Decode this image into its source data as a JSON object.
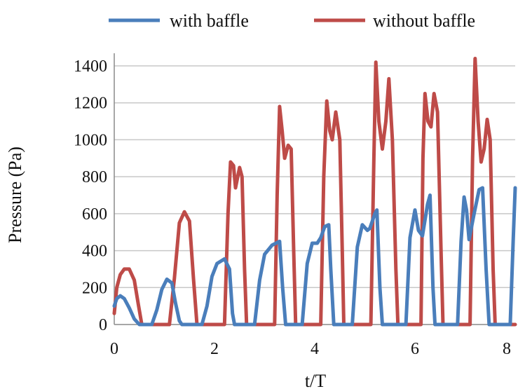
{
  "chart_data": {
    "type": "line",
    "title": "",
    "xlabel": "t/T",
    "ylabel": "Pressure (Pa)",
    "xlim": [
      0,
      8
    ],
    "ylim": [
      0,
      1400
    ],
    "xticks": [
      0,
      2,
      4,
      6,
      8
    ],
    "yticks": [
      0,
      200,
      400,
      600,
      800,
      1000,
      1200,
      1400
    ],
    "grid": "horizontal",
    "legend_position": "top",
    "series": [
      {
        "name": "with baffle",
        "color": "#4a7ebb",
        "points": [
          [
            0.0,
            100
          ],
          [
            0.05,
            140
          ],
          [
            0.12,
            155
          ],
          [
            0.2,
            140
          ],
          [
            0.3,
            90
          ],
          [
            0.4,
            30
          ],
          [
            0.5,
            0
          ],
          [
            0.75,
            0
          ],
          [
            0.85,
            80
          ],
          [
            0.95,
            190
          ],
          [
            1.05,
            245
          ],
          [
            1.15,
            225
          ],
          [
            1.22,
            120
          ],
          [
            1.3,
            20
          ],
          [
            1.35,
            0
          ],
          [
            1.75,
            0
          ],
          [
            1.85,
            100
          ],
          [
            1.95,
            260
          ],
          [
            2.05,
            330
          ],
          [
            2.2,
            355
          ],
          [
            2.3,
            300
          ],
          [
            2.36,
            60
          ],
          [
            2.4,
            0
          ],
          [
            2.8,
            0
          ],
          [
            2.9,
            240
          ],
          [
            3.0,
            380
          ],
          [
            3.15,
            430
          ],
          [
            3.3,
            450
          ],
          [
            3.36,
            200
          ],
          [
            3.42,
            0
          ],
          [
            3.75,
            0
          ],
          [
            3.85,
            330
          ],
          [
            3.95,
            440
          ],
          [
            4.05,
            440
          ],
          [
            4.12,
            470
          ],
          [
            4.2,
            530
          ],
          [
            4.28,
            540
          ],
          [
            4.32,
            300
          ],
          [
            4.38,
            0
          ],
          [
            4.75,
            0
          ],
          [
            4.85,
            420
          ],
          [
            4.95,
            540
          ],
          [
            5.05,
            510
          ],
          [
            5.1,
            520
          ],
          [
            5.2,
            600
          ],
          [
            5.24,
            620
          ],
          [
            5.3,
            200
          ],
          [
            5.35,
            0
          ],
          [
            5.82,
            0
          ],
          [
            5.9,
            470
          ],
          [
            6.0,
            620
          ],
          [
            6.07,
            510
          ],
          [
            6.15,
            480
          ],
          [
            6.25,
            650
          ],
          [
            6.3,
            700
          ],
          [
            6.36,
            200
          ],
          [
            6.4,
            0
          ],
          [
            6.85,
            0
          ],
          [
            6.92,
            450
          ],
          [
            6.98,
            690
          ],
          [
            7.03,
            620
          ],
          [
            7.08,
            460
          ],
          [
            7.18,
            600
          ],
          [
            7.28,
            730
          ],
          [
            7.35,
            740
          ],
          [
            7.42,
            300
          ],
          [
            7.48,
            0
          ],
          [
            7.9,
            0
          ],
          [
            7.96,
            450
          ],
          [
            8.0,
            740
          ]
        ]
      },
      {
        "name": "without baffle",
        "color": "#be4b48",
        "points": [
          [
            0.0,
            60
          ],
          [
            0.05,
            200
          ],
          [
            0.12,
            270
          ],
          [
            0.2,
            300
          ],
          [
            0.3,
            300
          ],
          [
            0.4,
            240
          ],
          [
            0.48,
            110
          ],
          [
            0.55,
            0
          ],
          [
            1.1,
            0
          ],
          [
            1.2,
            250
          ],
          [
            1.3,
            550
          ],
          [
            1.4,
            610
          ],
          [
            1.5,
            560
          ],
          [
            1.58,
            250
          ],
          [
            1.65,
            0
          ],
          [
            2.2,
            0
          ],
          [
            2.27,
            600
          ],
          [
            2.32,
            880
          ],
          [
            2.38,
            860
          ],
          [
            2.42,
            740
          ],
          [
            2.5,
            850
          ],
          [
            2.55,
            800
          ],
          [
            2.6,
            300
          ],
          [
            2.64,
            0
          ],
          [
            3.2,
            0
          ],
          [
            3.25,
            700
          ],
          [
            3.3,
            1180
          ],
          [
            3.35,
            1050
          ],
          [
            3.4,
            900
          ],
          [
            3.47,
            970
          ],
          [
            3.53,
            950
          ],
          [
            3.58,
            400
          ],
          [
            3.62,
            0
          ],
          [
            4.12,
            0
          ],
          [
            4.18,
            800
          ],
          [
            4.24,
            1210
          ],
          [
            4.3,
            1050
          ],
          [
            4.35,
            1000
          ],
          [
            4.42,
            1150
          ],
          [
            4.5,
            1000
          ],
          [
            4.55,
            400
          ],
          [
            4.58,
            0
          ],
          [
            5.12,
            0
          ],
          [
            5.18,
            900
          ],
          [
            5.22,
            1420
          ],
          [
            5.28,
            1100
          ],
          [
            5.35,
            950
          ],
          [
            5.42,
            1100
          ],
          [
            5.48,
            1330
          ],
          [
            5.55,
            1000
          ],
          [
            5.62,
            300
          ],
          [
            5.66,
            0
          ],
          [
            6.12,
            0
          ],
          [
            6.16,
            900
          ],
          [
            6.2,
            1250
          ],
          [
            6.26,
            1100
          ],
          [
            6.32,
            1070
          ],
          [
            6.38,
            1250
          ],
          [
            6.45,
            1150
          ],
          [
            6.52,
            400
          ],
          [
            6.56,
            0
          ],
          [
            7.1,
            0
          ],
          [
            7.15,
            900
          ],
          [
            7.2,
            1440
          ],
          [
            7.26,
            1100
          ],
          [
            7.32,
            880
          ],
          [
            7.38,
            950
          ],
          [
            7.44,
            1110
          ],
          [
            7.5,
            1000
          ],
          [
            7.56,
            300
          ],
          [
            7.6,
            0
          ],
          [
            7.8,
            0
          ],
          [
            8.0,
            0
          ]
        ]
      }
    ]
  }
}
